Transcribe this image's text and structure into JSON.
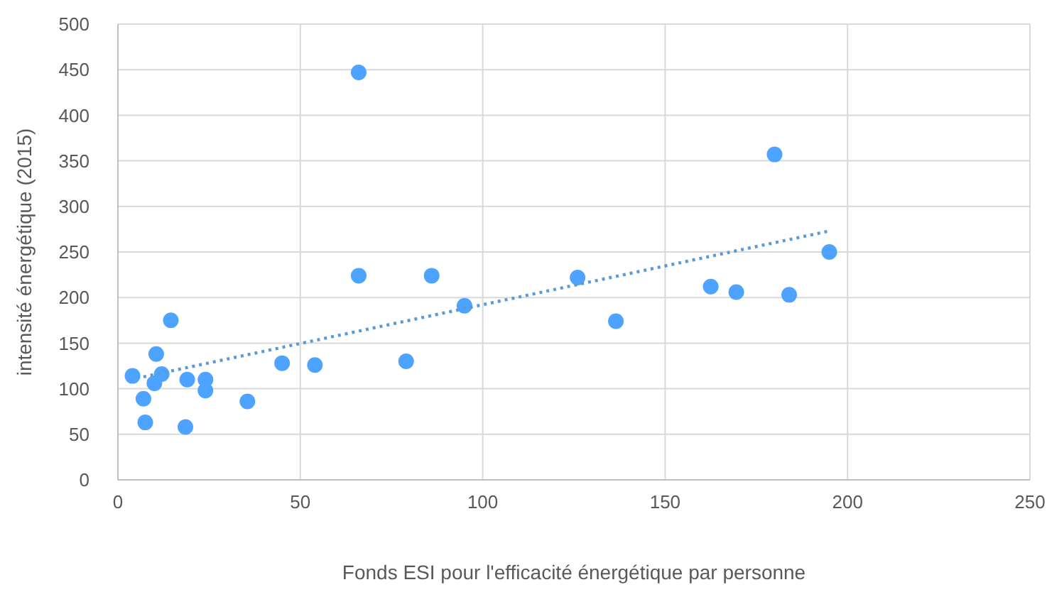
{
  "chart_data": {
    "type": "scatter",
    "xlabel": "Fonds ESI pour l'efficacité énergétique par personne",
    "ylabel": "intensité énergétique (2015)",
    "xlim": [
      0,
      250
    ],
    "xticks": [
      0,
      50,
      100,
      150,
      200,
      250
    ],
    "ylim": [
      0,
      500
    ],
    "yticks": [
      0,
      50,
      100,
      150,
      200,
      250,
      300,
      350,
      400,
      450,
      500
    ],
    "grid": true,
    "marker": "circle",
    "series": [
      {
        "color": "#4da3ff",
        "x": [
          4,
          7,
          7.5,
          10,
          10.5,
          12,
          14.5,
          18.5,
          19,
          24,
          24,
          35.5,
          45,
          54,
          66,
          66,
          86,
          79,
          95,
          126,
          136.5,
          162.5,
          169.5,
          180,
          184,
          195
        ],
        "values": [
          114,
          89,
          63,
          106,
          138,
          116,
          175,
          58,
          110,
          110,
          98,
          86,
          128,
          126,
          447,
          224,
          224,
          130,
          191,
          222,
          174,
          212,
          206,
          357,
          203,
          250
        ]
      },
      {
        "type": "line",
        "color": "#5b9bd5",
        "line_style": "dotted",
        "marker": "none",
        "x": [
          7,
          195
        ],
        "values": [
          113,
          273
        ]
      }
    ]
  }
}
